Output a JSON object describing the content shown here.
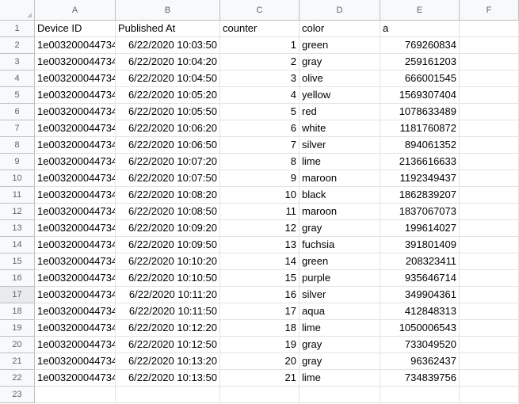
{
  "columns": [
    "A",
    "B",
    "C",
    "D",
    "E",
    "F"
  ],
  "header_row": {
    "num": "1",
    "cells": [
      "Device ID",
      "Published At",
      "counter",
      "color",
      "a",
      ""
    ]
  },
  "rows": [
    {
      "num": "2",
      "device": "1e003200044734",
      "published": "6/22/2020 10:03:50",
      "counter": "1",
      "color": "green",
      "a": "769260834"
    },
    {
      "num": "3",
      "device": "1e003200044734",
      "published": "6/22/2020 10:04:20",
      "counter": "2",
      "color": "gray",
      "a": "259161203"
    },
    {
      "num": "4",
      "device": "1e003200044734",
      "published": "6/22/2020 10:04:50",
      "counter": "3",
      "color": "olive",
      "a": "666001545"
    },
    {
      "num": "5",
      "device": "1e003200044734",
      "published": "6/22/2020 10:05:20",
      "counter": "4",
      "color": "yellow",
      "a": "1569307404"
    },
    {
      "num": "6",
      "device": "1e003200044734",
      "published": "6/22/2020 10:05:50",
      "counter": "5",
      "color": "red",
      "a": "1078633489"
    },
    {
      "num": "7",
      "device": "1e003200044734",
      "published": "6/22/2020 10:06:20",
      "counter": "6",
      "color": "white",
      "a": "1181760872"
    },
    {
      "num": "8",
      "device": "1e003200044734",
      "published": "6/22/2020 10:06:50",
      "counter": "7",
      "color": "silver",
      "a": "894061352"
    },
    {
      "num": "9",
      "device": "1e003200044734",
      "published": "6/22/2020 10:07:20",
      "counter": "8",
      "color": "lime",
      "a": "2136616633"
    },
    {
      "num": "10",
      "device": "1e003200044734",
      "published": "6/22/2020 10:07:50",
      "counter": "9",
      "color": "maroon",
      "a": "1192349437"
    },
    {
      "num": "11",
      "device": "1e003200044734",
      "published": "6/22/2020 10:08:20",
      "counter": "10",
      "color": "black",
      "a": "1862839207"
    },
    {
      "num": "12",
      "device": "1e003200044734",
      "published": "6/22/2020 10:08:50",
      "counter": "11",
      "color": "maroon",
      "a": "1837067073"
    },
    {
      "num": "13",
      "device": "1e003200044734",
      "published": "6/22/2020 10:09:20",
      "counter": "12",
      "color": "gray",
      "a": "199614027"
    },
    {
      "num": "14",
      "device": "1e003200044734",
      "published": "6/22/2020 10:09:50",
      "counter": "13",
      "color": "fuchsia",
      "a": "391801409"
    },
    {
      "num": "15",
      "device": "1e003200044734",
      "published": "6/22/2020 10:10:20",
      "counter": "14",
      "color": "green",
      "a": "208323411"
    },
    {
      "num": "16",
      "device": "1e003200044734",
      "published": "6/22/2020 10:10:50",
      "counter": "15",
      "color": "purple",
      "a": "935646714"
    },
    {
      "num": "17",
      "device": "1e003200044734",
      "published": "6/22/2020 10:11:20",
      "counter": "16",
      "color": "silver",
      "a": "349904361",
      "selected": true
    },
    {
      "num": "18",
      "device": "1e003200044734",
      "published": "6/22/2020 10:11:50",
      "counter": "17",
      "color": "aqua",
      "a": "412848313"
    },
    {
      "num": "19",
      "device": "1e003200044734",
      "published": "6/22/2020 10:12:20",
      "counter": "18",
      "color": "lime",
      "a": "1050006543"
    },
    {
      "num": "20",
      "device": "1e003200044734",
      "published": "6/22/2020 10:12:50",
      "counter": "19",
      "color": "gray",
      "a": "733049520"
    },
    {
      "num": "21",
      "device": "1e003200044734",
      "published": "6/22/2020 10:13:20",
      "counter": "20",
      "color": "gray",
      "a": "96362437"
    },
    {
      "num": "22",
      "device": "1e003200044734",
      "published": "6/22/2020 10:13:50",
      "counter": "21",
      "color": "lime",
      "a": "734839756"
    }
  ],
  "empty_row": {
    "num": "23"
  }
}
